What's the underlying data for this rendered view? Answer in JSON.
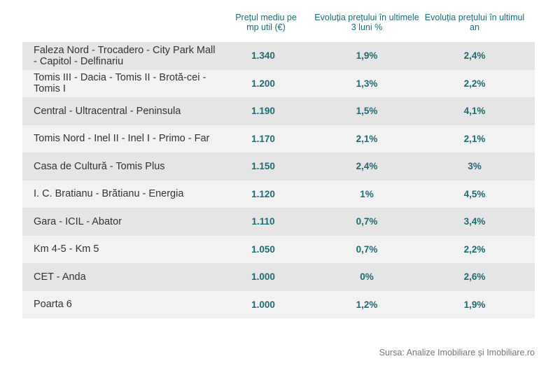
{
  "headers": {
    "price": "Prețul mediu pe mp util (€)",
    "evol3": "Evoluția prețului în ultimele 3 luni %",
    "evolYear": "Evoluția prețului în ultimul an"
  },
  "rows": [
    {
      "zone": "Faleza Nord - Trocadero - City Park Mall - Capitol - Delfinariu",
      "price": "1.340",
      "evol3": "1,9%",
      "evolYear": "2,4%"
    },
    {
      "zone": "Tomis III - Dacia - Tomis II - Brotă-cei - Tomis I",
      "price": "1.200",
      "evol3": "1,3%",
      "evolYear": "2,2%"
    },
    {
      "zone": "Central - Ultracentral - Peninsula",
      "price": "1.190",
      "evol3": "1,5%",
      "evolYear": "4,1%"
    },
    {
      "zone": "Tomis Nord - Inel II - Inel I - Primo - Far",
      "price": "1.170",
      "evol3": "2,1%",
      "evolYear": "2,1%"
    },
    {
      "zone": "Casa de Cultură - Tomis Plus",
      "price": "1.150",
      "evol3": "2,4%",
      "evolYear": "3%"
    },
    {
      "zone": "I. C. Bratianu - Brătianu - Energia",
      "price": "1.120",
      "evol3": "1%",
      "evolYear": "4,5%"
    },
    {
      "zone": "Gara - ICIL - Abator",
      "price": "1.110",
      "evol3": "0,7%",
      "evolYear": "3,4%"
    },
    {
      "zone": "Km 4-5 - Km 5",
      "price": "1.050",
      "evol3": "0,7%",
      "evolYear": "2,2%"
    },
    {
      "zone": "CET - Anda",
      "price": "1.000",
      "evol3": "0%",
      "evolYear": "2,6%"
    },
    {
      "zone": "Poarta 6",
      "price": "1.000",
      "evol3": "1,2%",
      "evolYear": "1,9%"
    }
  ],
  "source": "Sursa: Analize Imobiliare și Imobiliare.ro",
  "colors": {
    "accent": "#1e6a73",
    "rowDark": "#e5e5e5",
    "rowLight": "#f2f2f2"
  }
}
